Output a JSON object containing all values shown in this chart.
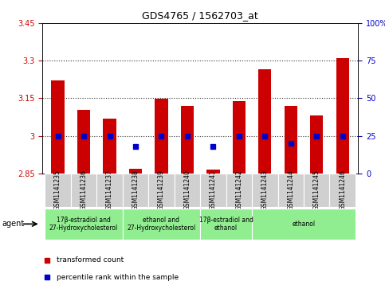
{
  "title": "GDS4765 / 1562703_at",
  "samples": [
    "GSM1141235",
    "GSM1141236",
    "GSM1141237",
    "GSM1141238",
    "GSM1141239",
    "GSM1141240",
    "GSM1141241",
    "GSM1141242",
    "GSM1141243",
    "GSM1141244",
    "GSM1141245",
    "GSM1141246"
  ],
  "transformed_counts": [
    3.22,
    3.105,
    3.07,
    2.87,
    3.148,
    3.12,
    2.865,
    3.14,
    3.265,
    3.12,
    3.08,
    3.31
  ],
  "percentile_ranks": [
    25,
    25,
    25,
    18,
    25,
    25,
    18,
    25,
    25,
    20,
    25,
    25
  ],
  "bar_bottom": 2.85,
  "ylim_left": [
    2.85,
    3.45
  ],
  "ylim_right": [
    0,
    100
  ],
  "yticks_left": [
    2.85,
    3.0,
    3.15,
    3.3,
    3.45
  ],
  "ytick_labels_left": [
    "2.85",
    "3",
    "3.15",
    "3.3",
    "3.45"
  ],
  "yticks_right": [
    0,
    25,
    50,
    75,
    100
  ],
  "ytick_labels_right": [
    "0",
    "25",
    "50",
    "75",
    "100%"
  ],
  "hlines": [
    3.0,
    3.15,
    3.3
  ],
  "agent_groups": [
    {
      "label": "17β-estradiol and\n27-Hydroxycholesterol",
      "start": 0,
      "end": 3
    },
    {
      "label": "ethanol and\n27-Hydroxycholesterol",
      "start": 3,
      "end": 6
    },
    {
      "label": "17β-estradiol and\nethanol",
      "start": 6,
      "end": 8
    },
    {
      "label": "ethanol",
      "start": 8,
      "end": 12
    }
  ],
  "bar_color": "#cc0000",
  "dot_color": "#0000cc",
  "left_tick_color": "#cc0000",
  "right_tick_color": "#0000cc",
  "grid_color": "#333333",
  "plot_bg": "#ffffff",
  "sample_box_color": "#d0d0d0",
  "agent_box_color": "#90ee90"
}
